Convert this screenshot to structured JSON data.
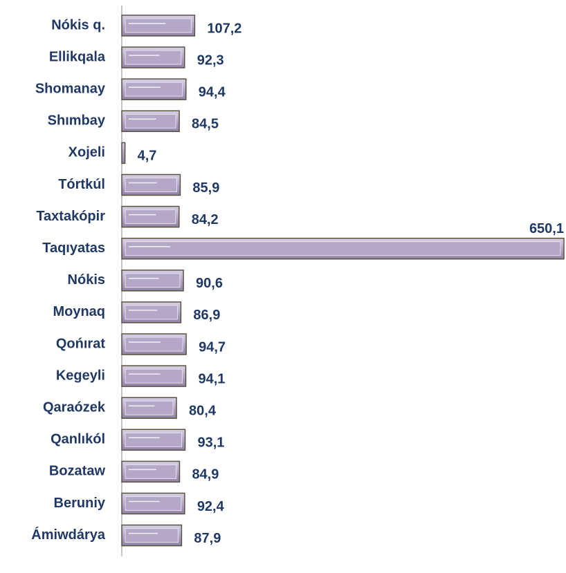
{
  "chart_data": {
    "type": "bar",
    "orientation": "horizontal",
    "categories": [
      "Nókis q.",
      "Ellikqala",
      "Shomanay",
      "Shımbay",
      "Xojeli",
      "Tórtkúl",
      "Taxtakópir",
      "Taqıyatas",
      "Nókis",
      "Moynaq",
      "Qońırat",
      "Kegeyli",
      "Qaraózek",
      "Qanlıkól",
      "Bozataw",
      "Beruniy",
      "Ámiwdárya"
    ],
    "values": [
      107.2,
      92.3,
      94.4,
      84.5,
      4.7,
      85.9,
      84.2,
      650.1,
      90.6,
      86.9,
      94.7,
      94.1,
      80.4,
      93.1,
      84.9,
      92.4,
      87.9
    ],
    "value_labels": [
      "107,2",
      "92,3",
      "94,4",
      "84,5",
      "4,7",
      "85,9",
      "84,2",
      "650,1",
      "90,6",
      "86,9",
      "94,7",
      "94,1",
      "80,4",
      "93,1",
      "84,9",
      "92,4",
      "87,9"
    ],
    "color": "#b4a7c8"
  }
}
